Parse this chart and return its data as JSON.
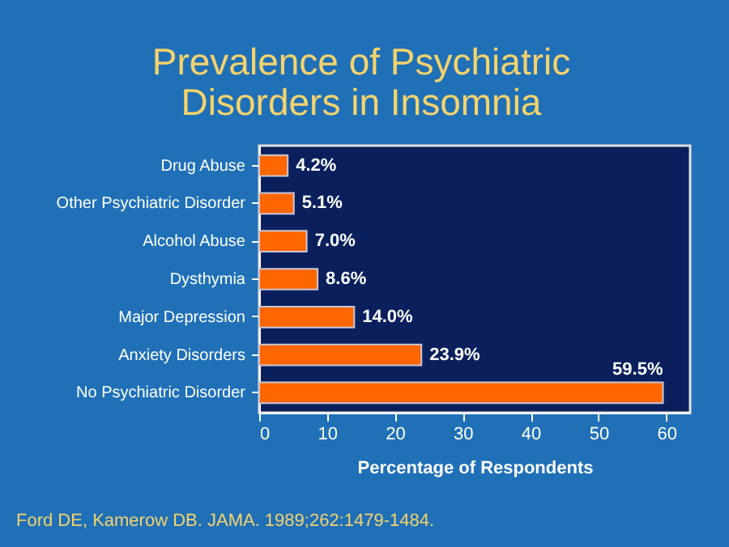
{
  "chart_data": {
    "type": "bar",
    "orientation": "horizontal",
    "title": "Prevalence of Psychiatric Disorders in Insomnia",
    "xlabel": "Percentage of Respondents",
    "categories": [
      "Drug Abuse",
      "Other Psychiatric Disorder",
      "Alcohol Abuse",
      "Dysthymia",
      "Major Depression",
      "Anxiety Disorders",
      "No Psychiatric Disorder"
    ],
    "values": [
      4.2,
      5.1,
      7.0,
      8.6,
      14.0,
      23.9,
      59.5
    ],
    "value_labels": [
      "4.2%",
      "5.1%",
      "7.0%",
      "8.6%",
      "14.0%",
      "23.9%",
      "59.5%"
    ],
    "color": "#ff6600",
    "xlim": [
      0,
      63.5
    ],
    "xticks": [
      0,
      10,
      20,
      30,
      40,
      50,
      60
    ],
    "grid": false,
    "annotations": [
      "Ford DE, Kamerow DB. JAMA. 1989;262:1479-1484."
    ]
  }
}
